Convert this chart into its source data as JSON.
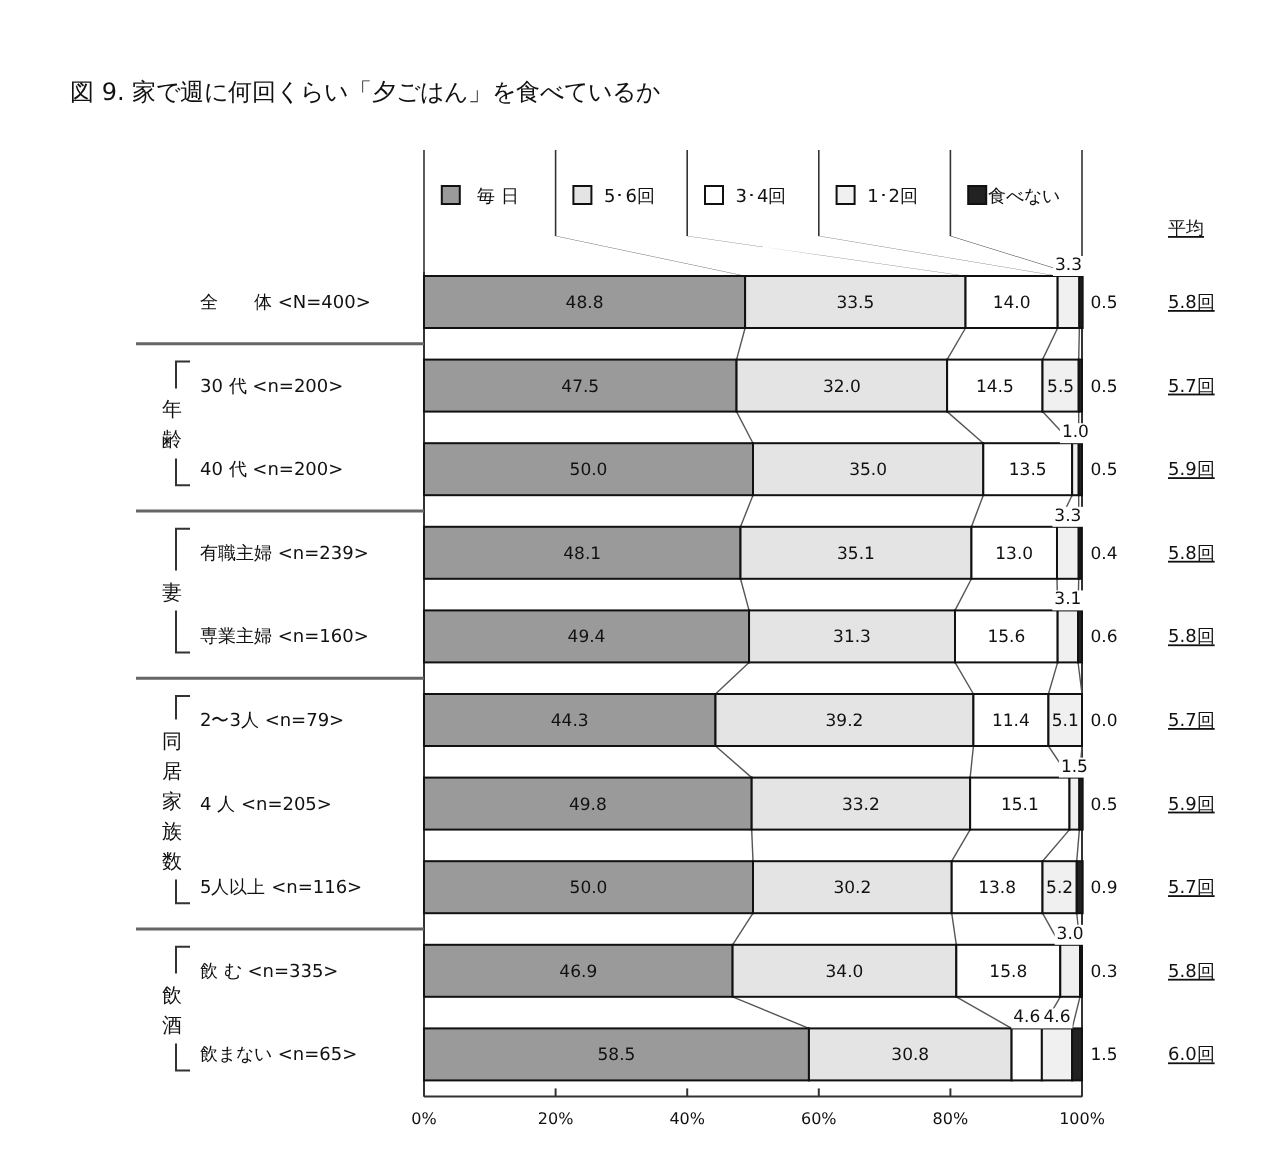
{
  "chart_data": {
    "type": "bar",
    "orientation": "horizontal",
    "stacked": true,
    "title": "図 9. 家で週に何回くらい「夕ごはん」を食べているか",
    "categories": [
      "全　　体 <N=400>",
      "30 代 <n=200>",
      "40 代 <n=200>",
      "有職主婦 <n=239>",
      "専業主婦 <n=160>",
      "2〜3人 <n=79>",
      "4 人 <n=205>",
      "5人以上 <n=116>",
      "飲 む <n=335>",
      "飲まない <n=65>"
    ],
    "series": [
      {
        "name": "毎 日",
        "color": "#9a9a9a",
        "values": [
          48.8,
          47.5,
          50.0,
          48.1,
          49.4,
          44.3,
          49.8,
          50.0,
          46.9,
          58.5
        ],
        "value_labels": [
          "48.8",
          "47.5",
          "50.0",
          "48.1",
          "49.4",
          "44.3",
          "49.8",
          "50.0",
          "46.9",
          "58.5"
        ]
      },
      {
        "name": "5･6回",
        "color": "#e4e4e4",
        "values": [
          33.5,
          32.0,
          35.0,
          35.1,
          31.3,
          39.2,
          33.2,
          30.2,
          34.0,
          30.8
        ],
        "value_labels": [
          "33.5",
          "32.0",
          "35.0",
          "35.1",
          "31.3",
          "39.2",
          "33.2",
          "30.2",
          "34.0",
          "30.8"
        ]
      },
      {
        "name": "3･4回",
        "color": "#ffffff",
        "values": [
          14.0,
          14.5,
          13.5,
          13.0,
          15.6,
          11.4,
          15.1,
          13.8,
          15.8,
          4.6
        ],
        "value_labels": [
          "14.0",
          "14.5",
          "13.5",
          "13.0",
          "15.6",
          "11.4",
          "15.1",
          "13.8",
          "15.8",
          "4.6"
        ]
      },
      {
        "name": "1･2回",
        "color": "#f0f0f0",
        "values": [
          3.3,
          5.5,
          1.0,
          3.3,
          3.1,
          5.1,
          1.5,
          5.2,
          3.0,
          4.6
        ],
        "value_labels": [
          "3.3",
          "5.5",
          "1.0",
          "3.3",
          "3.1",
          "5.1",
          "1.5",
          "5.2",
          "3.0",
          "4.6"
        ]
      },
      {
        "name": "食べない",
        "color": "#222222",
        "values": [
          0.5,
          0.5,
          0.5,
          0.4,
          0.6,
          0.0,
          0.5,
          0.9,
          0.3,
          1.5
        ],
        "value_labels": [
          "0.5",
          "0.5",
          "0.5",
          "0.4",
          "0.6",
          "0.0",
          "0.5",
          "0.9",
          "0.3",
          "1.5"
        ]
      }
    ],
    "xlim": [
      0,
      100
    ],
    "xticks": [
      {
        "value": 0,
        "label": "0%"
      },
      {
        "value": 20,
        "label": "20%"
      },
      {
        "value": 40,
        "label": "40%"
      },
      {
        "value": 60,
        "label": "60%"
      },
      {
        "value": 80,
        "label": "80%"
      },
      {
        "value": 100,
        "label": "100%"
      }
    ],
    "legend": "top",
    "annotations": [
      "平均",
      "5.8回",
      "5.7回",
      "5.9回",
      "5.8回",
      "5.8回",
      "5.7回",
      "5.9回",
      "5.7回",
      "5.8回",
      "6.0回",
      "年齢",
      "妻",
      "同居家族数",
      "飲酒"
    ]
  }
}
